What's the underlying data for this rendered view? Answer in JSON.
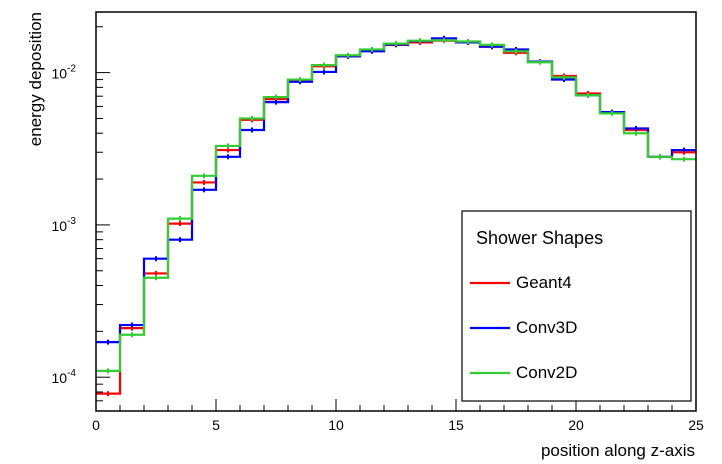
{
  "chart_data": {
    "type": "line",
    "title": "",
    "xlabel": "position along z-axis",
    "ylabel": "energy deposition",
    "xlim": [
      0,
      25
    ],
    "ylim": [
      6e-05,
      0.025
    ],
    "yscale": "log",
    "grid": false,
    "legend_title": "Shower Shapes",
    "legend_position": "bottom-right",
    "x_ticks": [
      0,
      5,
      10,
      15,
      20,
      25
    ],
    "y_ticks": [
      {
        "value": 0.0001,
        "mantissa": "10",
        "exponent": "-4"
      },
      {
        "value": 0.001,
        "mantissa": "10",
        "exponent": "-3"
      },
      {
        "value": 0.01,
        "mantissa": "10",
        "exponent": "-2"
      }
    ],
    "bin_edges": [
      0,
      1,
      2,
      3,
      4,
      5,
      6,
      7,
      8,
      9,
      10,
      11,
      12,
      13,
      14,
      15,
      16,
      17,
      18,
      19,
      20,
      21,
      22,
      23,
      24,
      25
    ],
    "series": [
      {
        "name": "Geant4",
        "color": "#ff0000",
        "values": [
          7.8e-05,
          0.00021,
          0.00048,
          0.00102,
          0.0019,
          0.0031,
          0.0049,
          0.0067,
          0.0089,
          0.011,
          0.0128,
          0.014,
          0.0152,
          0.0158,
          0.0162,
          0.0158,
          0.0148,
          0.0135,
          0.0118,
          0.0095,
          0.0073,
          0.0055,
          0.0042,
          0.0028,
          0.003
        ]
      },
      {
        "name": "Conv3D",
        "color": "#0000ff",
        "values": [
          0.00017,
          0.00022,
          0.0006,
          0.0008,
          0.0017,
          0.0028,
          0.0042,
          0.0064,
          0.0087,
          0.0101,
          0.0128,
          0.0138,
          0.0153,
          0.0161,
          0.0168,
          0.0158,
          0.0148,
          0.0142,
          0.0118,
          0.009,
          0.0071,
          0.0055,
          0.0043,
          0.0028,
          0.0031
        ]
      },
      {
        "name": "Conv2D",
        "color": "#33cc33",
        "values": [
          0.00011,
          0.00019,
          0.00045,
          0.0011,
          0.0021,
          0.0033,
          0.005,
          0.0069,
          0.009,
          0.0112,
          0.013,
          0.0142,
          0.0155,
          0.0162,
          0.0163,
          0.016,
          0.0152,
          0.0138,
          0.0117,
          0.0093,
          0.0071,
          0.0054,
          0.004,
          0.0028,
          0.0027
        ]
      }
    ]
  }
}
